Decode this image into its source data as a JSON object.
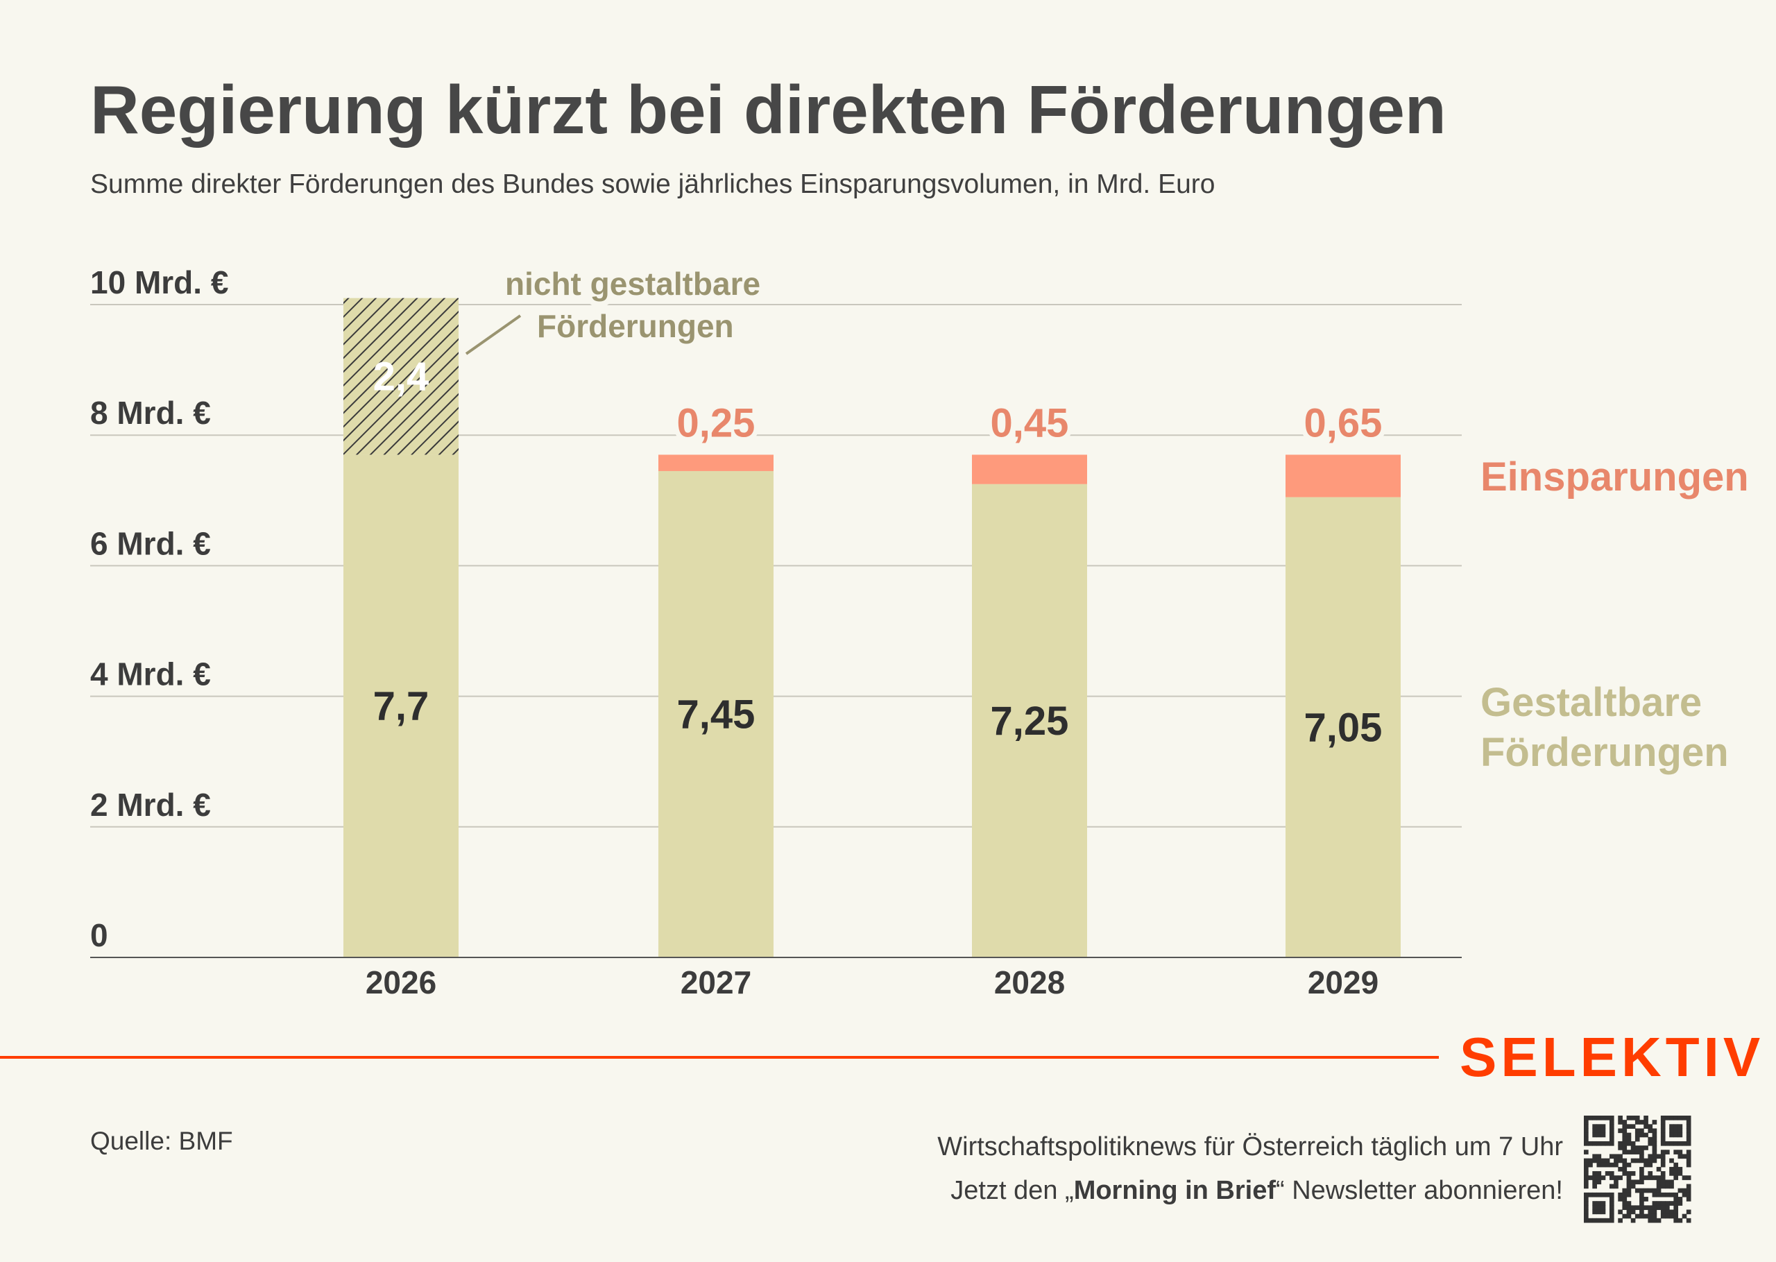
{
  "colors": {
    "background": "#f8f7ef",
    "gestaltbar": "#dfdbab",
    "einsparungen": "#fe9a7c",
    "einsparungen_text": "#e8876b",
    "annotation_text": "#9a9470",
    "legend_gestaltbar": "#c3bd8f",
    "brand": "#ff3d00"
  },
  "header": {
    "title": "Regierung kürzt bei direkten Förderungen",
    "subtitle": "Summe direkter Förderungen des Bundes sowie jährliches Einsparungsvolumen, in Mrd. Euro"
  },
  "chart_data": {
    "type": "bar",
    "stacked": true,
    "title": "Regierung kürzt bei direkten Förderungen",
    "subtitle": "Summe direkter Förderungen des Bundes sowie jährliches Einsparungsvolumen, in Mrd. Euro",
    "xlabel": "",
    "ylabel": "",
    "ylim": [
      0,
      10
    ],
    "grid": true,
    "yticks": [
      0,
      2,
      4,
      6,
      8,
      10
    ],
    "ytick_labels": [
      "0",
      "2 Mrd. €",
      "4 Mrd. €",
      "6 Mrd. €",
      "8 Mrd. €",
      "10 Mrd. €"
    ],
    "categories": [
      "2026",
      "2027",
      "2028",
      "2029"
    ],
    "series": [
      {
        "name": "Gestaltbare Förderungen",
        "values": [
          7.7,
          7.45,
          7.25,
          7.05
        ],
        "labels": [
          "7,7",
          "7,45",
          "7,25",
          "7,05"
        ]
      },
      {
        "name": "nicht gestaltbare Förderungen",
        "values": [
          2.4,
          null,
          null,
          null
        ],
        "labels": [
          "2,4",
          null,
          null,
          null
        ]
      },
      {
        "name": "Einsparungen",
        "values": [
          null,
          0.25,
          0.45,
          0.65
        ],
        "labels": [
          null,
          "0,25",
          "0,45",
          "0,65"
        ]
      }
    ],
    "annotation": {
      "line1": "nicht gestaltbare",
      "line2": "Förderungen"
    },
    "legend": {
      "placement": "right",
      "einsparungen": "Einsparungen",
      "gestaltbar_line1": "Gestaltbare",
      "gestaltbar_line2": "Förderungen"
    }
  },
  "footer": {
    "logo": "SELEKTIV",
    "source": "Quelle: BMF",
    "promo_line1": "Wirtschaftspolitiknews für Österreich täglich um 7 Uhr",
    "promo_line2_pre": "Jetzt den „",
    "promo_line2_bold": "Morning in Brief",
    "promo_line2_post": "“ Newsletter abonnieren!",
    "qr_icon": "qr-code-icon"
  }
}
